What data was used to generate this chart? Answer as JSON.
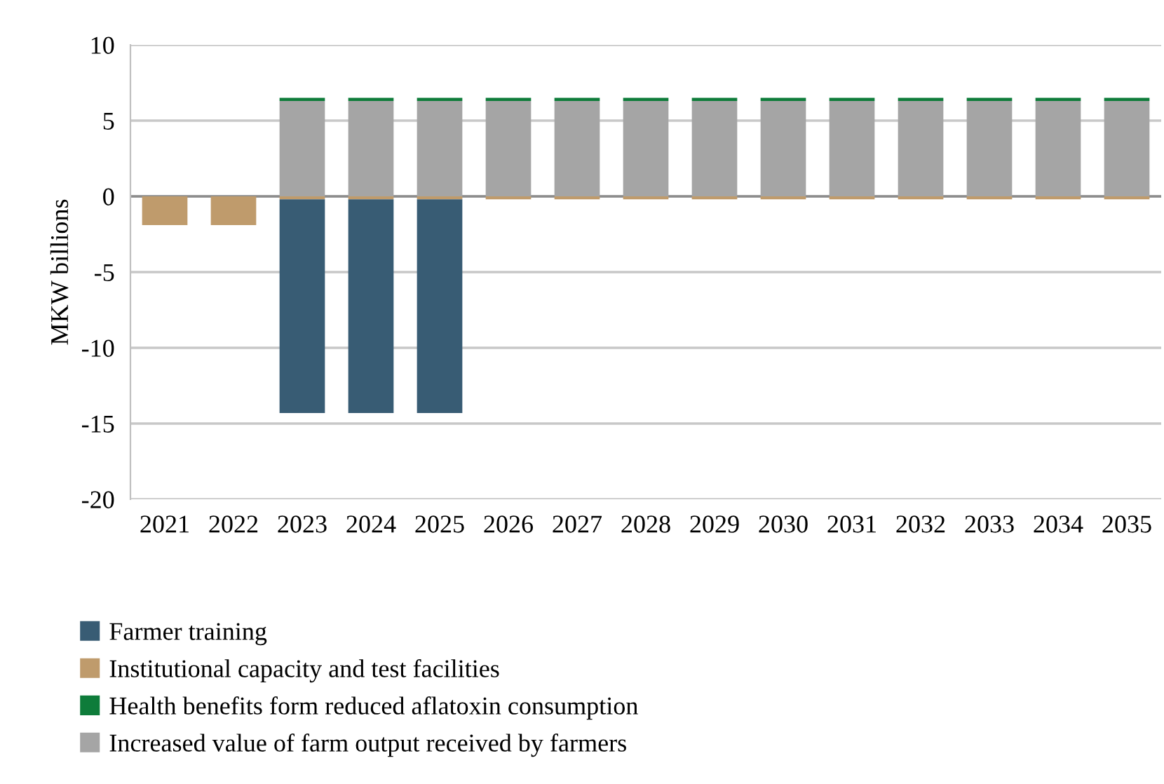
{
  "chart_data": {
    "type": "bar",
    "stacked": true,
    "ylabel": "MKW billions",
    "categories": [
      "2021",
      "2022",
      "2023",
      "2024",
      "2025",
      "2026",
      "2027",
      "2028",
      "2029",
      "2030",
      "2031",
      "2032",
      "2033",
      "2034",
      "2035"
    ],
    "series": [
      {
        "name": "Increased value of farm output received by farmers",
        "color": "#a5a5a5",
        "values": [
          null,
          null,
          6.3,
          6.3,
          6.3,
          6.3,
          6.3,
          6.3,
          6.3,
          6.3,
          6.3,
          6.3,
          6.3,
          6.3,
          6.3
        ]
      },
      {
        "name": "Health benefits form reduced aflatoxin consumption",
        "color": "#0e7c3a",
        "values": [
          null,
          null,
          0.2,
          0.2,
          0.2,
          0.2,
          0.2,
          0.2,
          0.2,
          0.2,
          0.2,
          0.2,
          0.2,
          0.2,
          0.2
        ]
      },
      {
        "name": "Institutional capacity and test facilities",
        "color": "#bf9b6c",
        "values": [
          -1.9,
          -1.9,
          -0.2,
          -0.2,
          -0.2,
          -0.2,
          -0.2,
          -0.2,
          -0.2,
          -0.2,
          -0.2,
          -0.2,
          -0.2,
          -0.2,
          -0.2
        ]
      },
      {
        "name": "Farmer training",
        "color": "#385c74",
        "values": [
          null,
          null,
          -14.1,
          -14.1,
          -14.1,
          null,
          null,
          null,
          null,
          null,
          null,
          null,
          null,
          null,
          null
        ]
      }
    ],
    "ylim": [
      -20,
      10
    ],
    "yticks": [
      -20,
      -15,
      -10,
      -5,
      0,
      5,
      10
    ],
    "grid": "y",
    "legend": "bottom left"
  }
}
